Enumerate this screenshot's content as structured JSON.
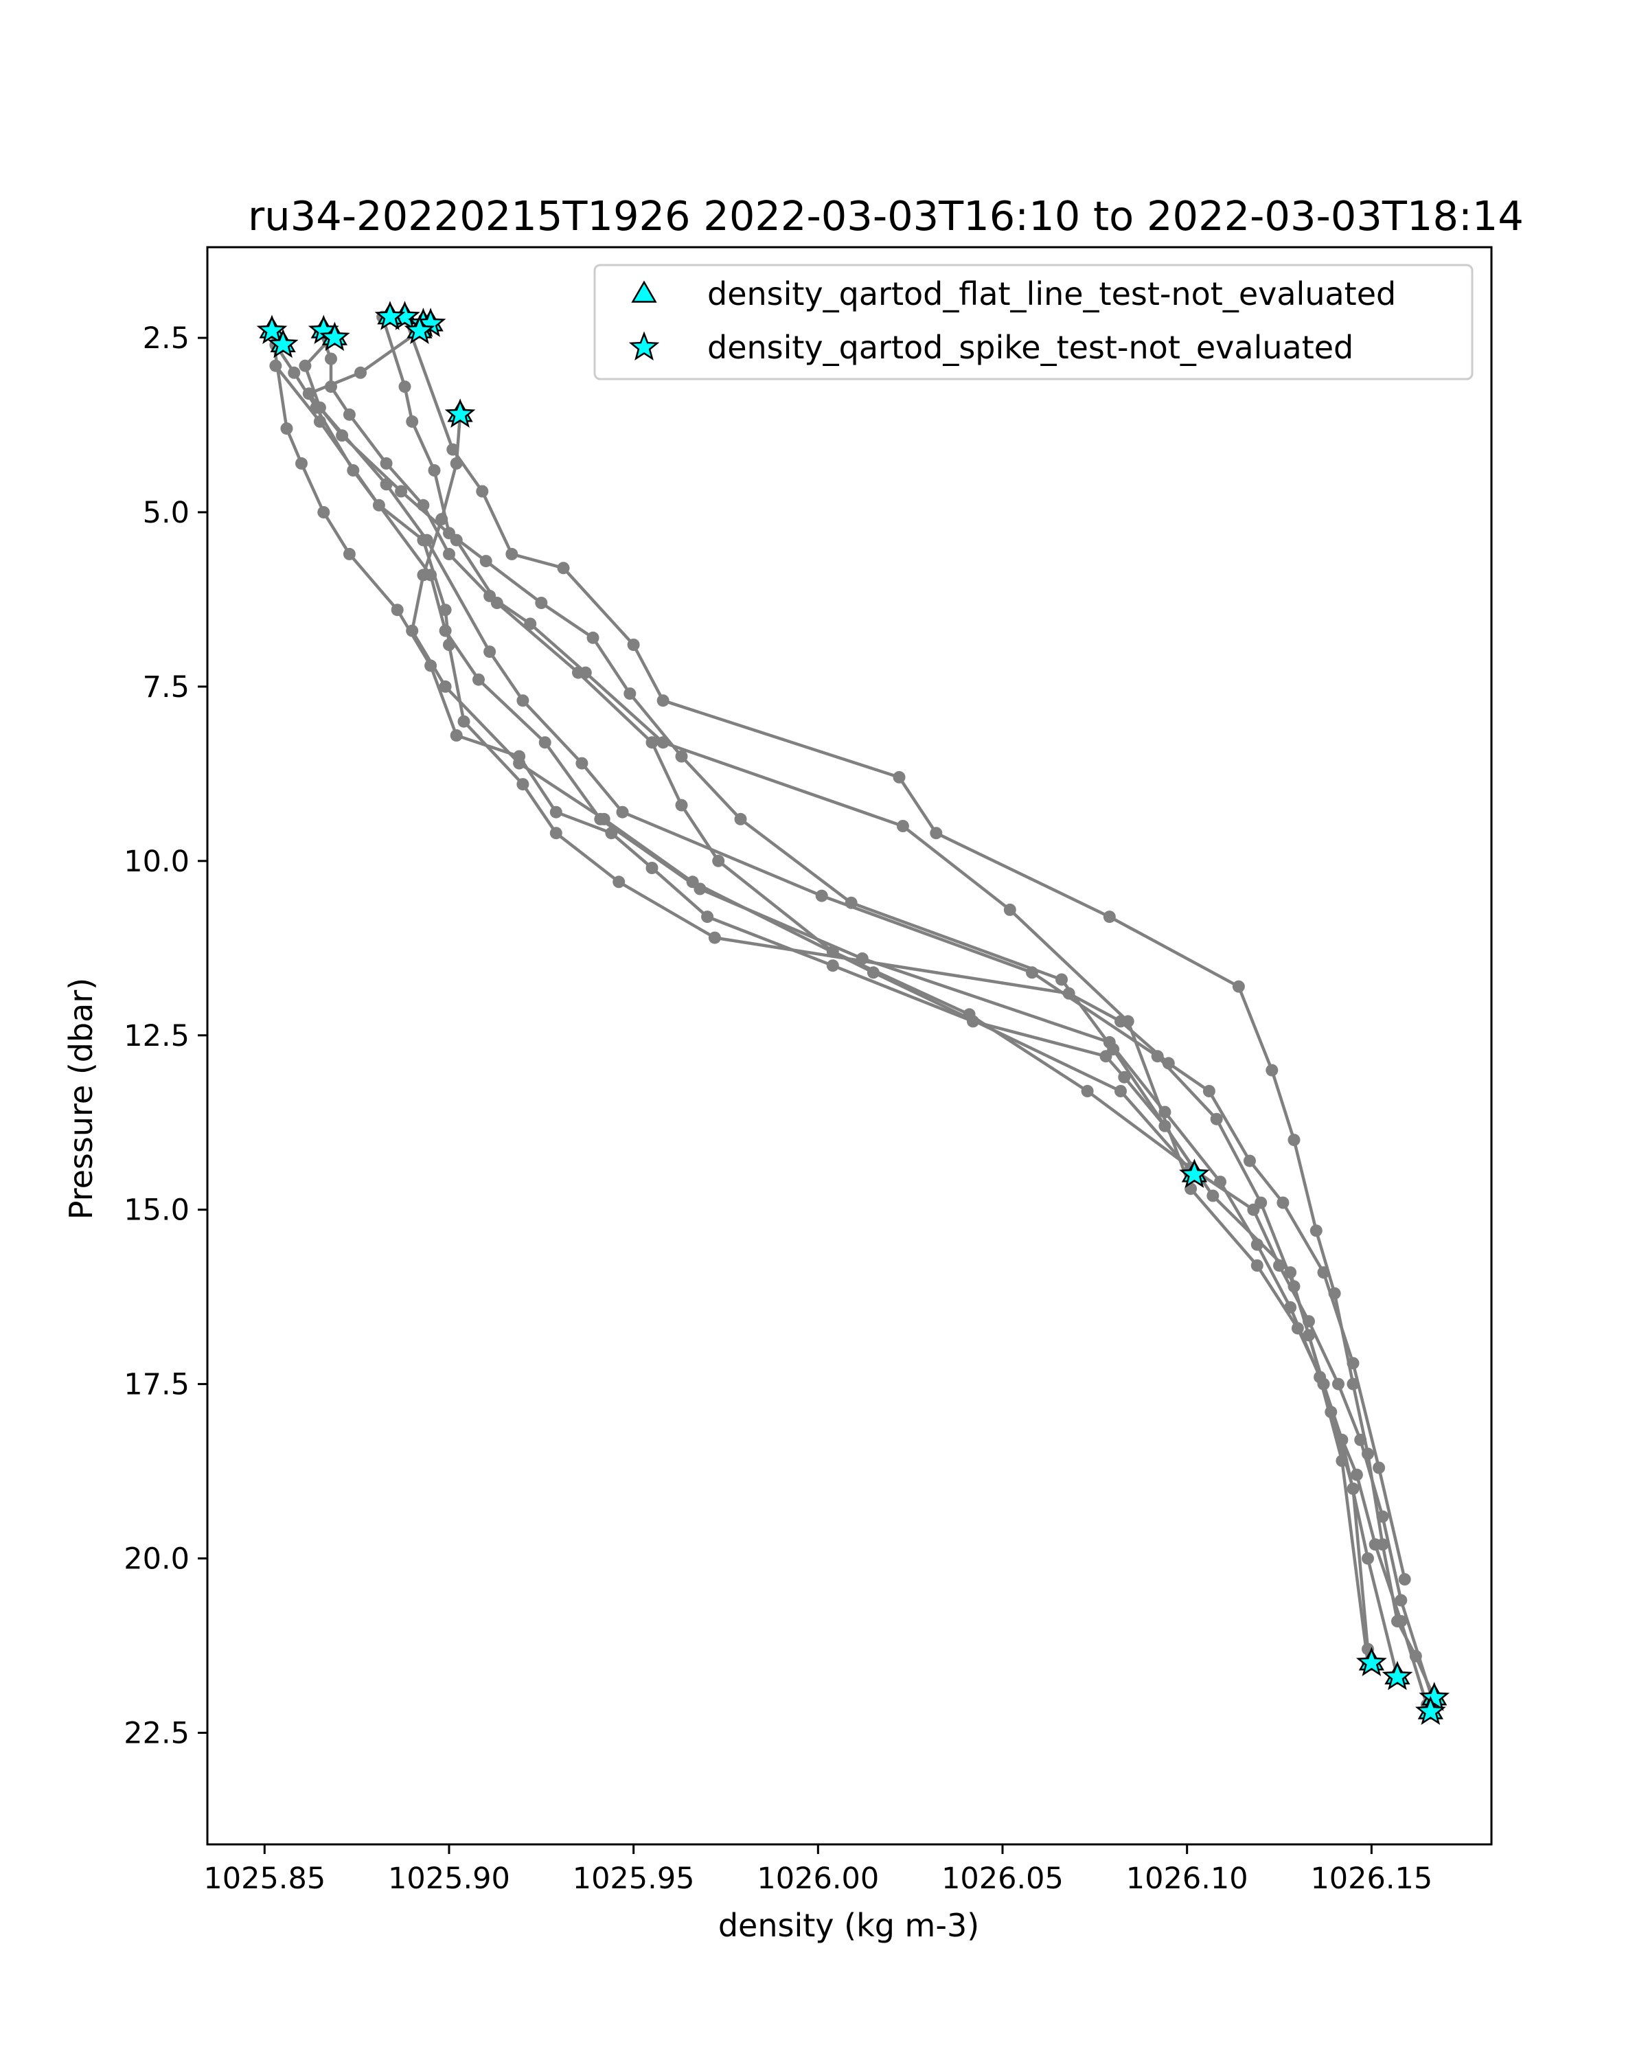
{
  "chart_data": {
    "type": "line",
    "title": "ru34-20220215T1926 2022-03-03T16:10 to 2022-03-03T18:14",
    "xlabel": "density (kg m-3)",
    "ylabel": "Pressure (dbar)",
    "xlim": [
      1025.8345,
      1026.1825
    ],
    "ylim": [
      24.1,
      1.2
    ],
    "y_inverted": true,
    "xticks": [
      1025.85,
      1025.9,
      1025.95,
      1026.0,
      1026.05,
      1026.1,
      1026.15
    ],
    "xtick_labels": [
      "1025.85",
      "1025.90",
      "1025.95",
      "1026.00",
      "1026.05",
      "1026.10",
      "1026.15"
    ],
    "yticks": [
      2.5,
      5.0,
      7.5,
      10.0,
      12.5,
      15.0,
      17.5,
      20.0,
      22.5
    ],
    "ytick_labels": [
      "2.5",
      "5.0",
      "7.5",
      "10.0",
      "12.5",
      "15.0",
      "17.5",
      "20.0",
      "22.5"
    ],
    "grid": false,
    "legend_position": "top-right",
    "line_color": "#808080",
    "marker_color": "#00ffff",
    "series": [
      {
        "x": [
          1025.888,
          1025.901,
          1025.909,
          1025.917,
          1025.931,
          1025.95,
          1025.958,
          1026.022,
          1026.032,
          1026.079,
          1026.114,
          1026.123,
          1026.129,
          1026.135,
          1026.14,
          1026.145,
          1026.149,
          1026.153,
          1026.157,
          1026.162,
          1026.167
        ],
        "y": [
          2.2,
          4.1,
          4.7,
          5.6,
          5.8,
          6.9,
          7.7,
          8.8,
          9.6,
          10.8,
          11.8,
          13.0,
          14.0,
          15.3,
          16.2,
          17.5,
          18.5,
          19.8,
          20.9,
          21.4,
          22.0
        ]
      },
      {
        "x": [
          1025.852,
          1025.856,
          1025.86,
          1025.866,
          1025.873,
          1025.886,
          1025.895,
          1025.902,
          1025.919,
          1025.929,
          1025.944,
          1025.955,
          1025.97,
          1026.004,
          1026.042,
          1026.078,
          1026.083,
          1026.094,
          1026.107,
          1026.128,
          1026.133,
          1026.139,
          1026.146,
          1026.151,
          1026.158,
          1026.165
        ],
        "y": [
          2.4,
          3.8,
          4.3,
          5.0,
          5.6,
          6.4,
          7.2,
          8.2,
          8.5,
          9.3,
          9.6,
          10.1,
          10.8,
          11.5,
          12.3,
          12.8,
          13.1,
          13.8,
          14.8,
          15.9,
          16.8,
          17.9,
          18.8,
          19.8,
          20.9,
          22.1
        ]
      },
      {
        "x": [
          1025.892,
          1025.876,
          1025.862,
          1025.871,
          1025.887,
          1025.902,
          1025.913,
          1025.935,
          1025.955,
          1025.963,
          1025.973,
          1026.004,
          1026.041,
          1026.073,
          1026.101,
          1026.118,
          1026.125,
          1026.133,
          1026.141,
          1026.147,
          1026.153,
          1026.158,
          1026.167
        ],
        "y": [
          2.4,
          3.0,
          3.3,
          3.9,
          4.7,
          5.4,
          6.3,
          7.3,
          8.3,
          9.2,
          10.0,
          11.3,
          12.2,
          13.3,
          14.4,
          15.0,
          15.8,
          16.6,
          17.5,
          18.3,
          19.4,
          20.6,
          22.1
        ]
      },
      {
        "x": [
          1025.868,
          1025.861,
          1025.865,
          1025.883,
          1025.894,
          1025.911,
          1025.92,
          1025.936,
          1025.947,
          1026.001,
          1026.058,
          1026.092,
          1026.108,
          1026.12,
          1026.129,
          1026.137,
          1026.145,
          1026.149
        ],
        "y": [
          2.5,
          2.9,
          3.5,
          4.6,
          5.4,
          7.0,
          7.7,
          8.6,
          9.3,
          10.5,
          11.6,
          12.8,
          13.7,
          14.9,
          16.1,
          17.5,
          19.0,
          21.3
        ]
      },
      {
        "x": [
          1025.865,
          1025.868,
          1025.868,
          1025.873,
          1025.883,
          1025.893,
          1025.9,
          1025.911,
          1025.922,
          1025.937,
          1025.958,
          1026.023,
          1026.052,
          1026.084,
          1026.101,
          1026.119,
          1026.13,
          1026.137,
          1026.142,
          1026.149,
          1026.157
        ],
        "y": [
          2.4,
          2.8,
          3.2,
          3.6,
          4.3,
          4.9,
          5.6,
          6.2,
          6.6,
          7.3,
          8.3,
          9.5,
          10.7,
          12.3,
          14.7,
          15.8,
          16.7,
          17.5,
          18.3,
          20.0,
          21.7
        ]
      },
      {
        "x": [
          1025.853,
          1025.858,
          1025.864,
          1025.874,
          1025.895,
          1025.899,
          1025.908,
          1025.926,
          1025.941,
          1025.968,
          1026.012,
          1026.079,
          1026.094,
          1026.109,
          1026.119,
          1026.128,
          1026.136,
          1026.142,
          1026.149
        ],
        "y": [
          2.6,
          3.0,
          3.5,
          4.4,
          5.9,
          6.7,
          7.4,
          8.3,
          9.4,
          10.4,
          11.4,
          12.6,
          13.6,
          14.6,
          15.5,
          16.4,
          17.4,
          18.6,
          21.5
        ]
      },
      {
        "x": [
          1025.853,
          1025.865,
          1025.881,
          1025.893,
          1025.899,
          1025.9,
          1025.904,
          1025.92,
          1025.929,
          1025.946,
          1025.972,
          1026.068,
          1026.082,
          1026.095,
          1026.106,
          1026.117,
          1026.126,
          1026.137,
          1026.145,
          1026.152,
          1026.159
        ],
        "y": [
          2.9,
          3.7,
          4.9,
          5.4,
          6.4,
          6.9,
          8.0,
          8.9,
          9.6,
          10.3,
          11.1,
          11.9,
          12.3,
          12.9,
          13.3,
          14.3,
          14.9,
          15.9,
          17.2,
          18.7,
          20.3
        ]
      },
      {
        "x": [
          1025.882,
          1025.888,
          1025.89,
          1025.896,
          1025.9,
          1025.91,
          1025.925,
          1025.939,
          1025.949,
          1025.963,
          1025.979,
          1026.009,
          1026.066,
          1026.08,
          1026.103
        ],
        "y": [
          2.2,
          3.2,
          3.7,
          4.4,
          5.3,
          5.7,
          6.3,
          6.8,
          7.6,
          8.5,
          9.4,
          10.6,
          11.7,
          12.7,
          14.5
        ]
      },
      {
        "x": [
          1025.903,
          1025.902,
          1025.898,
          1025.893,
          1025.89,
          1025.899,
          1025.919,
          1025.942,
          1025.966,
          1026.015,
          1026.082,
          1026.102
        ],
        "y": [
          3.6,
          4.3,
          5.1,
          5.9,
          6.7,
          7.5,
          8.6,
          9.4,
          10.3,
          11.6,
          13.3,
          14.5
        ]
      }
    ],
    "flagged_points": [
      {
        "x": 1025.888,
        "y": 2.2
      },
      {
        "x": 1025.893,
        "y": 2.3
      },
      {
        "x": 1025.895,
        "y": 2.3
      },
      {
        "x": 1025.892,
        "y": 2.4
      },
      {
        "x": 1025.884,
        "y": 2.2
      },
      {
        "x": 1025.852,
        "y": 2.4
      },
      {
        "x": 1025.855,
        "y": 2.6
      },
      {
        "x": 1025.866,
        "y": 2.4
      },
      {
        "x": 1025.869,
        "y": 2.5
      },
      {
        "x": 1025.903,
        "y": 3.6
      },
      {
        "x": 1026.102,
        "y": 14.5
      },
      {
        "x": 1026.15,
        "y": 21.5
      },
      {
        "x": 1026.157,
        "y": 21.7
      },
      {
        "x": 1026.167,
        "y": 22.0
      },
      {
        "x": 1026.166,
        "y": 22.2
      }
    ],
    "legend": [
      {
        "marker": "triangle",
        "label": "density_qartod_flat_line_test-not_evaluated"
      },
      {
        "marker": "star",
        "label": "density_qartod_spike_test-not_evaluated"
      }
    ]
  }
}
